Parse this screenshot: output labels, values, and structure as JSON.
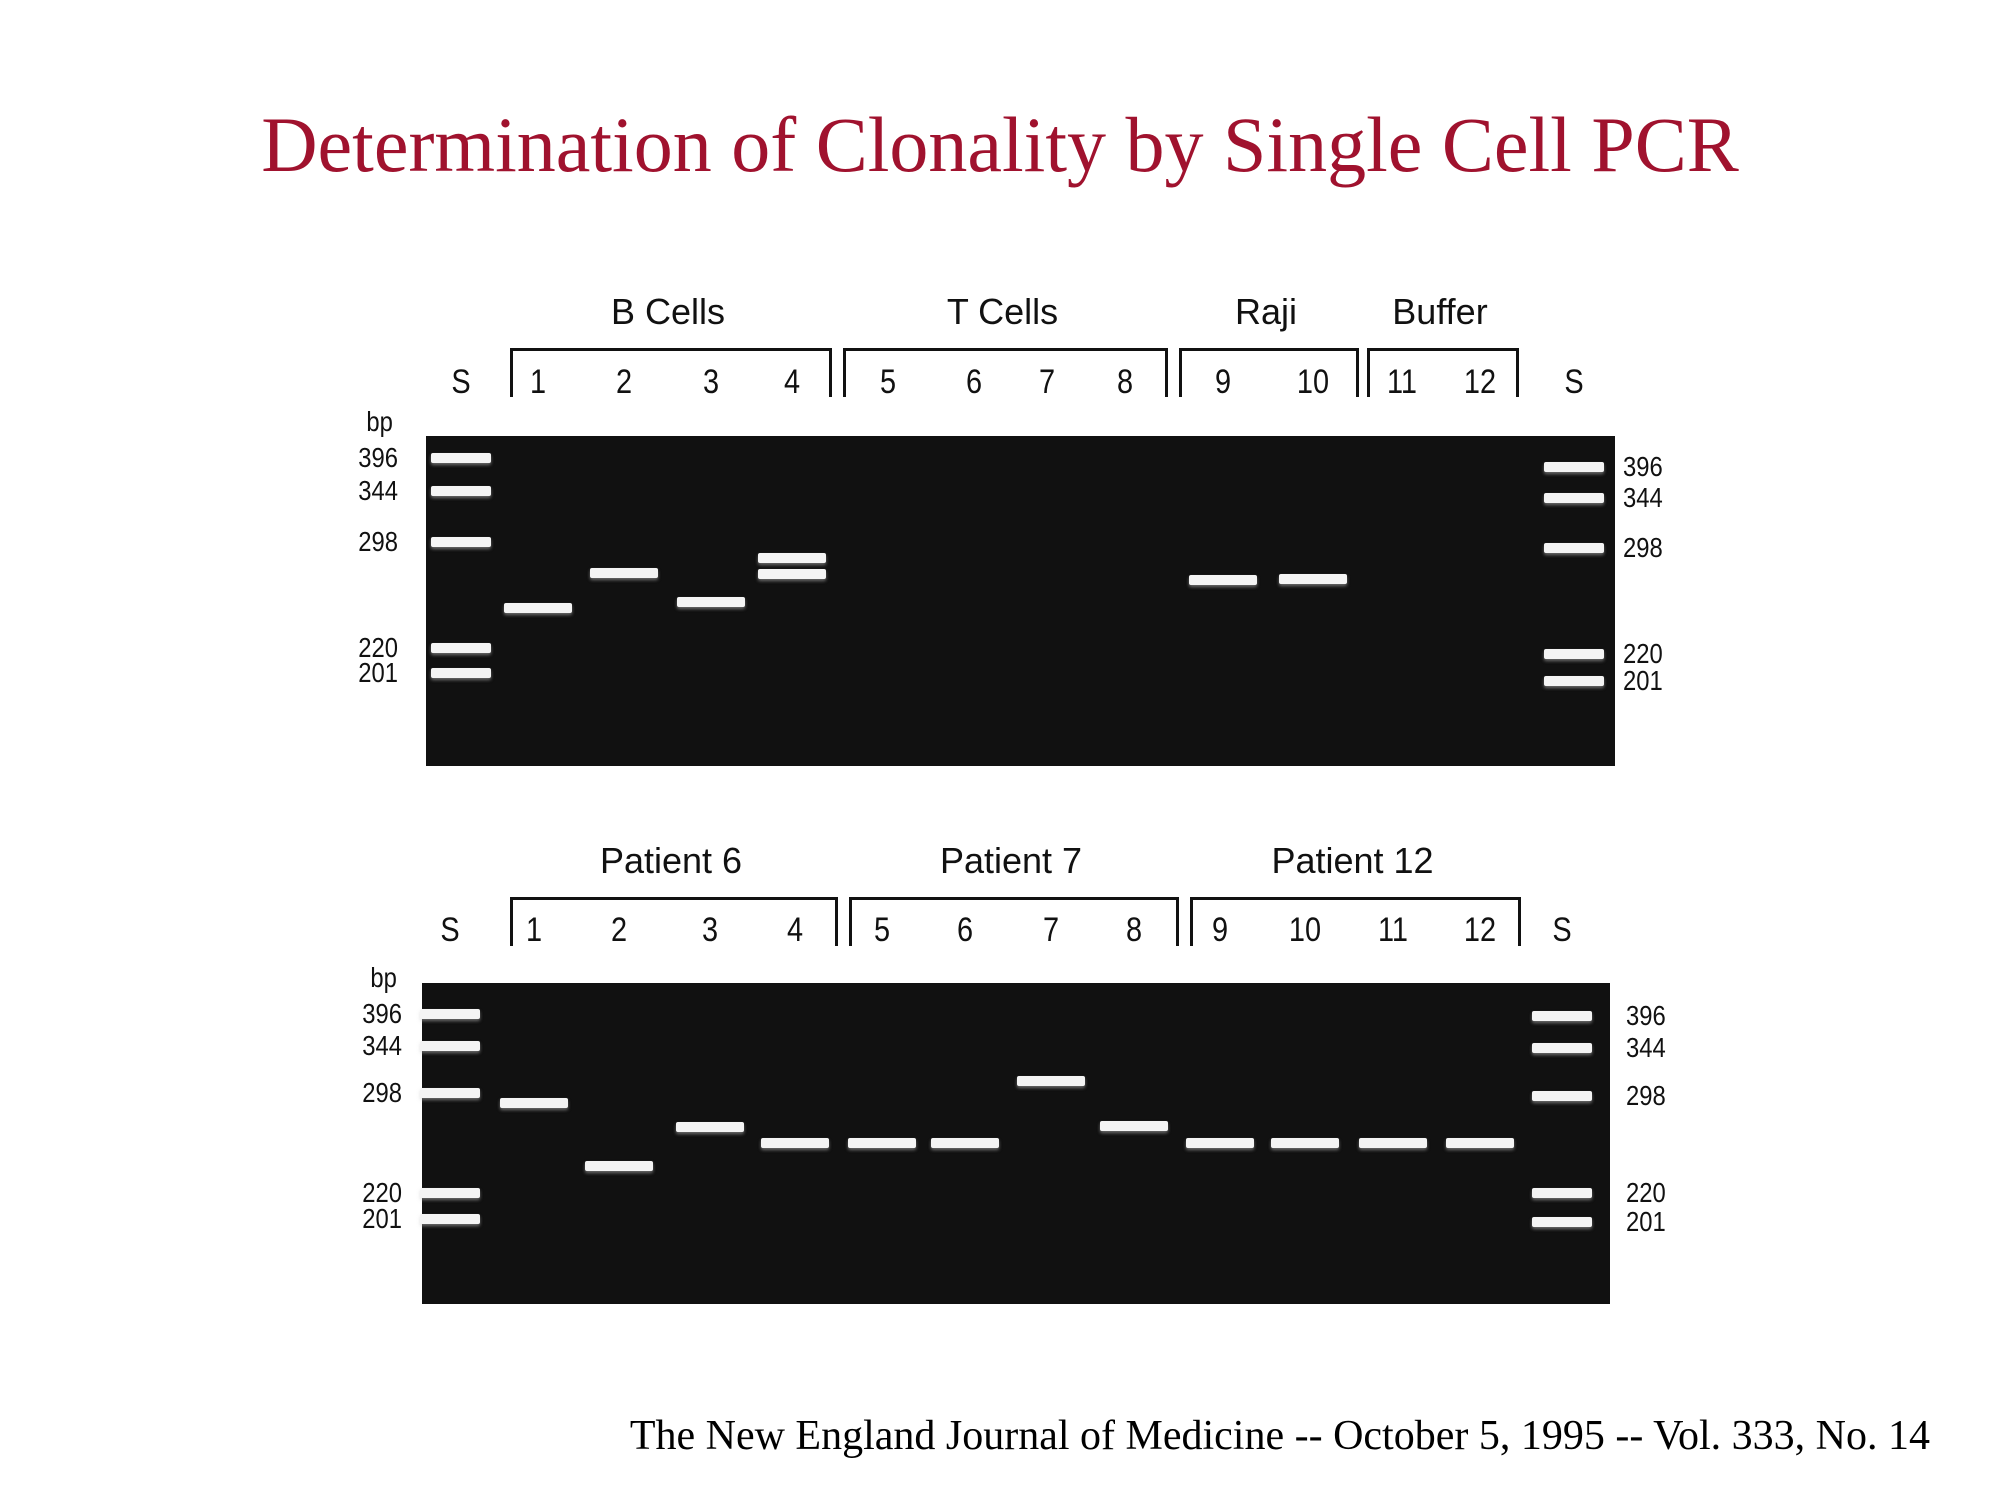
{
  "title": "Determination of Clonality by Single Cell PCR",
  "citation": "The New England Journal of Medicine -- October 5, 1995 -- Vol. 333, No. 14",
  "unit_label": "bp",
  "marker_sizes": [
    "396",
    "344",
    "298",
    "220",
    "201"
  ],
  "gels": [
    {
      "groups": [
        "B Cells",
        "T Cells",
        "Raji",
        "Buffer"
      ],
      "lanes": [
        "S",
        "1",
        "2",
        "3",
        "4",
        "5",
        "6",
        "7",
        "8",
        "9",
        "10",
        "11",
        "12",
        "S"
      ],
      "bands_bp": [
        {
          "lane": "1",
          "bp": [
            247
          ]
        },
        {
          "lane": "2",
          "bp": [
            273
          ]
        },
        {
          "lane": "3",
          "bp": [
            251
          ]
        },
        {
          "lane": "4",
          "bp": [
            285,
            272
          ]
        },
        {
          "lane": "9",
          "bp": [
            267
          ]
        },
        {
          "lane": "10",
          "bp": [
            268
          ]
        }
      ]
    },
    {
      "groups": [
        "Patient 6",
        "Patient 7",
        "Patient 12"
      ],
      "lanes": [
        "S",
        "1",
        "2",
        "3",
        "4",
        "5",
        "6",
        "7",
        "8",
        "9",
        "10",
        "11",
        "12",
        "S"
      ],
      "bands_bp": [
        {
          "lane": "1",
          "bp": [
            289
          ]
        },
        {
          "lane": "2",
          "bp": [
            239
          ]
        },
        {
          "lane": "3",
          "bp": [
            269
          ]
        },
        {
          "lane": "4",
          "bp": [
            256
          ]
        },
        {
          "lane": "5",
          "bp": [
            256
          ]
        },
        {
          "lane": "6",
          "bp": [
            256
          ]
        },
        {
          "lane": "7",
          "bp": [
            309
          ]
        },
        {
          "lane": "8",
          "bp": [
            270
          ]
        },
        {
          "lane": "9",
          "bp": [
            256
          ]
        },
        {
          "lane": "10",
          "bp": [
            256
          ]
        },
        {
          "lane": "11",
          "bp": [
            256
          ]
        },
        {
          "lane": "12",
          "bp": [
            256
          ]
        }
      ]
    }
  ]
}
